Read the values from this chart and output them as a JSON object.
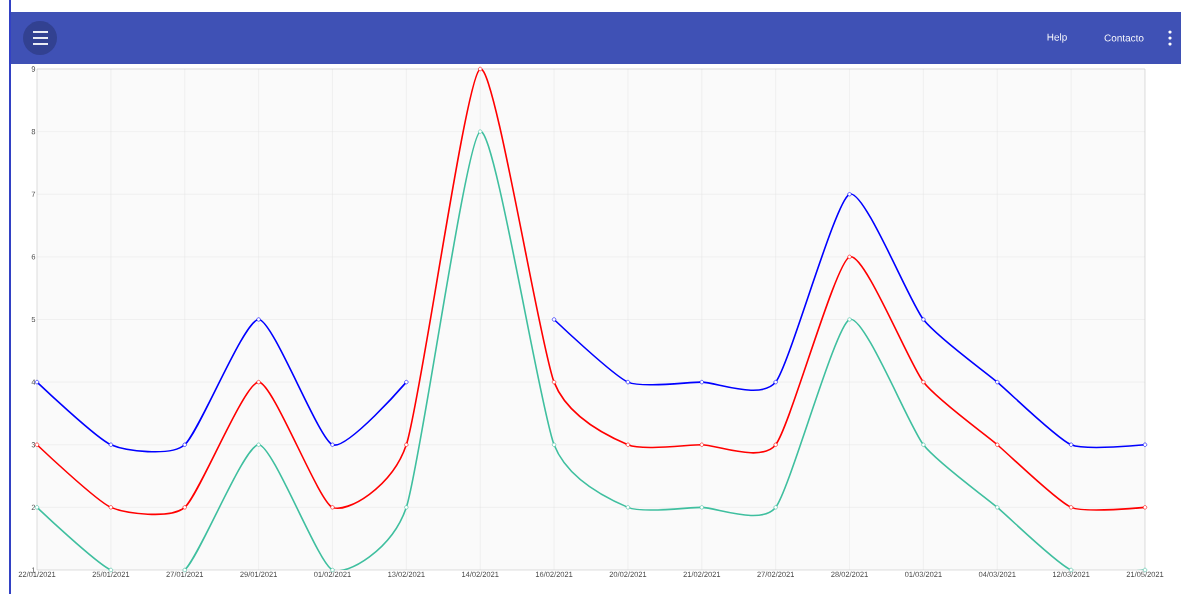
{
  "chart_data": {
    "type": "line",
    "categories": [
      "22/01/2021",
      "25/01/2021",
      "27/01/2021",
      "29/01/2021",
      "01/02/2021",
      "13/02/2021",
      "14/02/2021",
      "16/02/2021",
      "20/02/2021",
      "21/02/2021",
      "27/02/2021",
      "28/02/2021",
      "01/03/2021",
      "04/03/2021",
      "12/03/2021",
      "21/05/2021"
    ],
    "series": [
      {
        "color": "#0000ff",
        "values": [
          4,
          3,
          3,
          5,
          3,
          4,
          null,
          5,
          4,
          4,
          4,
          7,
          5,
          4,
          3,
          3
        ]
      },
      {
        "color": "#ff0000",
        "values": [
          3,
          2,
          2,
          4,
          2,
          3,
          9,
          4,
          3,
          3,
          3,
          6,
          4,
          3,
          2,
          2
        ]
      },
      {
        "color": "#3fbf9f",
        "values": [
          2,
          1,
          1,
          3,
          1,
          2,
          8,
          3,
          2,
          2,
          2,
          5,
          3,
          2,
          1,
          1
        ]
      }
    ],
    "ylim": [
      1,
      9
    ],
    "yticks": [
      1,
      2,
      3,
      4,
      5,
      6,
      7,
      8,
      9
    ],
    "grid": true,
    "marker": "circle",
    "line_style": "solid",
    "annotations": [
      "Help",
      "Contacto"
    ]
  }
}
